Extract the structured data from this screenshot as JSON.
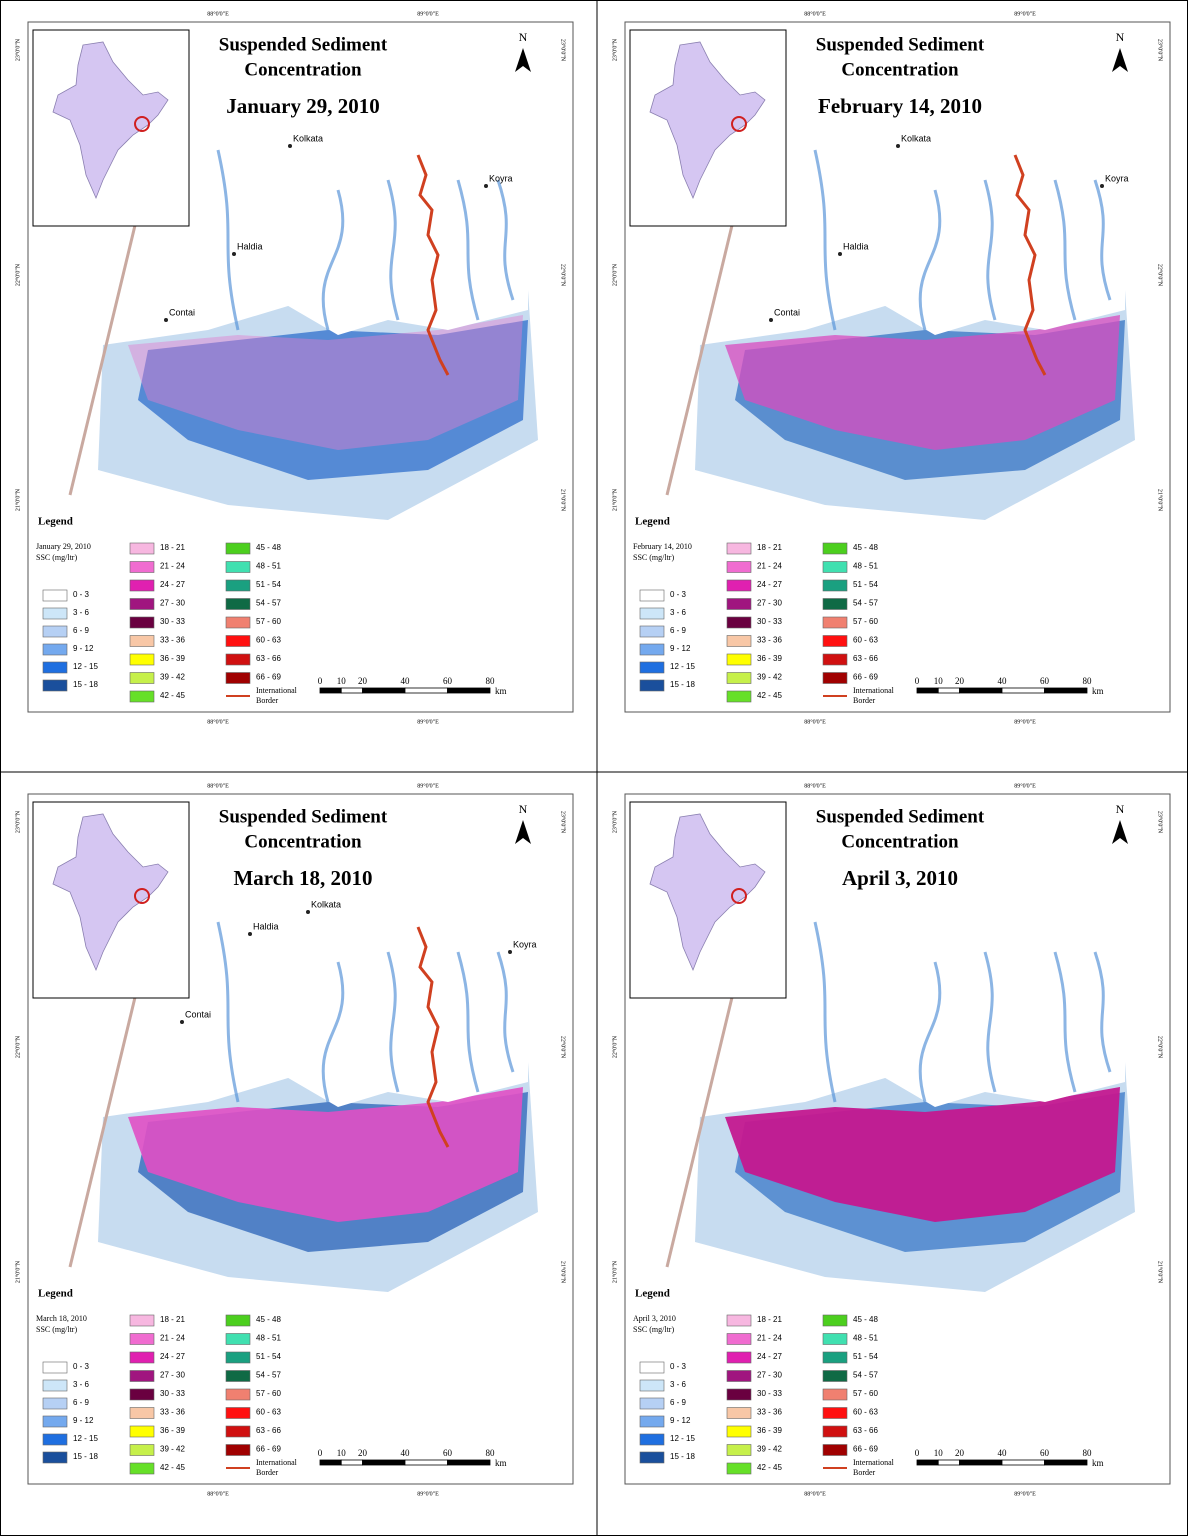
{
  "common": {
    "title_lines": [
      "Suspended Sediment",
      "Concentration"
    ],
    "north": "N",
    "lon_labels": [
      "88°0'0\"E",
      "89°0'0\"E"
    ],
    "lat_labels": [
      "23°0'0\"N",
      "22°0'0\"N",
      "21°0'0\"N"
    ],
    "legend": {
      "title": "Legend",
      "unit": "SSC (mg/ltr)",
      "classes": [
        {
          "label": "0 - 3",
          "color": "#ffffff"
        },
        {
          "label": "3 - 6",
          "color": "#cde6f8"
        },
        {
          "label": "6 - 9",
          "color": "#b6d0f4"
        },
        {
          "label": "9 - 12",
          "color": "#74a9ee"
        },
        {
          "label": "12 - 15",
          "color": "#1f6fe0"
        },
        {
          "label": "15 - 18",
          "color": "#1a4f9c"
        },
        {
          "label": "18 - 21",
          "color": "#f7b7e0"
        },
        {
          "label": "21 - 24",
          "color": "#f06cd0"
        },
        {
          "label": "24 - 27",
          "color": "#e020b0"
        },
        {
          "label": "27 - 30",
          "color": "#a0157f"
        },
        {
          "label": "30 - 33",
          "color": "#6a0040"
        },
        {
          "label": "33 - 36",
          "color": "#f8c7a6"
        },
        {
          "label": "36 - 39",
          "color": "#ffff00"
        },
        {
          "label": "39 - 42",
          "color": "#c6f04a"
        },
        {
          "label": "42 - 45",
          "color": "#66e028"
        },
        {
          "label": "45 - 48",
          "color": "#4ccf1e"
        },
        {
          "label": "48 - 51",
          "color": "#40e0b0"
        },
        {
          "label": "51 - 54",
          "color": "#1aa080"
        },
        {
          "label": "54 - 57",
          "color": "#0f6a45"
        },
        {
          "label": "57 - 60",
          "color": "#f08070"
        },
        {
          "label": "60 - 63",
          "color": "#ff1010"
        },
        {
          "label": "63 - 66",
          "color": "#d01010"
        },
        {
          "label": "66 - 69",
          "color": "#a00000"
        }
      ],
      "border": {
        "label_lines": [
          "International",
          "Border"
        ],
        "color": "#d04020"
      }
    },
    "scale_bar": {
      "ticks": [
        0,
        10,
        20,
        40,
        60,
        80
      ],
      "unit": "km"
    }
  },
  "panels": [
    {
      "date": "January 29, 2010",
      "places": [
        "Kolkata",
        "Haldia",
        "Contai",
        "Koyra"
      ]
    },
    {
      "date": "February 14, 2010",
      "places": [
        "Kolkata",
        "Haldia",
        "Contai",
        "Koyra"
      ]
    },
    {
      "date": "March 18, 2010",
      "places": [
        "Kolkata",
        "Haldia",
        "Contai",
        "Koyra"
      ]
    },
    {
      "date": "April 3, 2010",
      "places": []
    }
  ]
}
